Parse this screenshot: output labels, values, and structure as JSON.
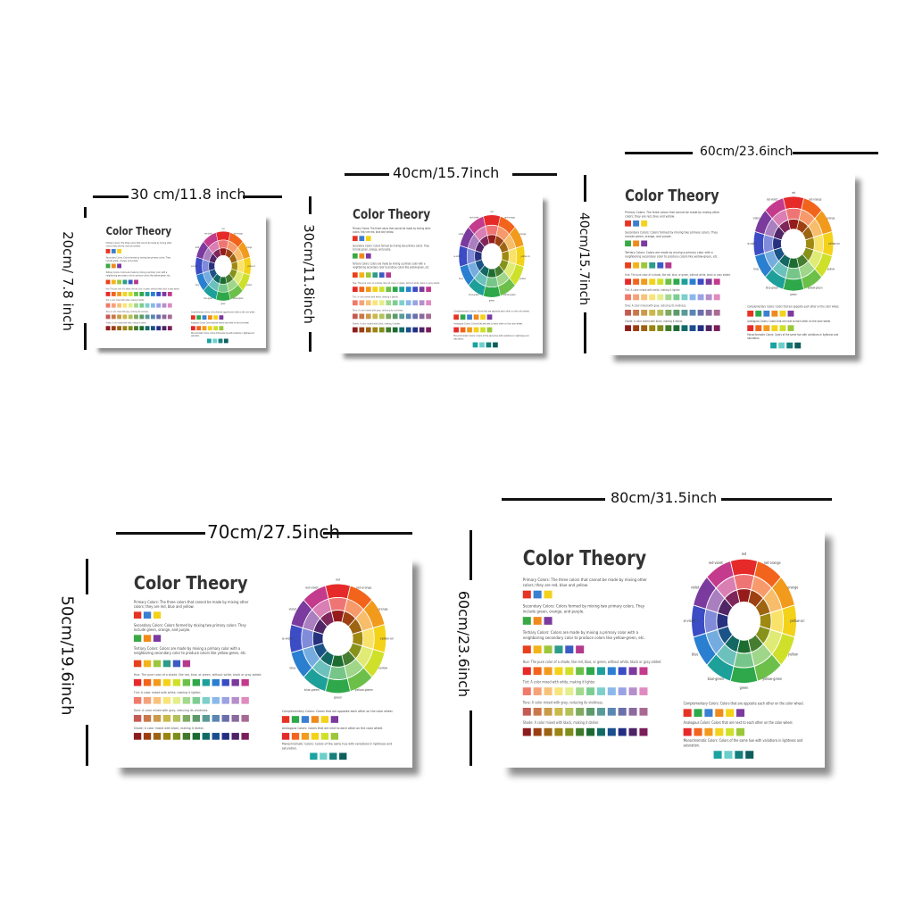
{
  "poster": {
    "title": "Color Theory",
    "primary": "Primary Colors: The three colors that cannot be made by mixing other colors; they are red, blue and yellow.",
    "secondary": "Secondary Colors: Colors formed by mixing two primary colors. They include green, orange, and purple.",
    "tertiary": "Tertiary Colors: Colors are made by mixing a primary color with a neighboring secondary color to produce colors like yellow-green, etc.",
    "hue": "Hue: The pure color of a shade, like red, blue, or green, without white, black or gray added.",
    "tint": "Tint: A color mixed with white, making it lighter.",
    "tone": "Tone: A color mixed with gray, reducing its vividness.",
    "shade": "Shade: A color mixed with black, making it darker.",
    "complementary": "Complementary Colors: Colors that are opposite each other on the color wheel.",
    "analogous": "Analogous Colors: Colors that are next to each other on the color wheel.",
    "monochromatic": "Monochromatic Colors: Colors of the same hue with variations in lightness and saturation."
  },
  "sizes": [
    {
      "width": "30 cm/11.8 inch",
      "height": "20cm/ 7.8 inch"
    },
    {
      "width": "40cm/15.7inch",
      "height": "30cm/11.8inch"
    },
    {
      "width": "60cm/23.6inch",
      "height": "40cm/15.7inch"
    },
    {
      "width": "70cm/27.5inch",
      "height": "50cm/19.6inch"
    },
    {
      "width": "80cm/31.5inch",
      "height": "60cm/23.6inch"
    }
  ],
  "colors": {
    "primary": [
      "#e63323",
      "#3a7fd0",
      "#f4d21a"
    ],
    "secondary": [
      "#3aa845",
      "#f08a1c",
      "#7b3a9e"
    ],
    "tertiary": [
      "#e8401c",
      "#f2b41a",
      "#9cc73a",
      "#2e9c8a",
      "#3b5cc4",
      "#b33a8c"
    ],
    "hue": [
      "#e62a2a",
      "#f2641c",
      "#f29a1c",
      "#f4d21a",
      "#cfe02a",
      "#6cc04a",
      "#2ea84a",
      "#1ea09a",
      "#2a7fd0",
      "#3b4cc4",
      "#7b3a9e",
      "#c43a8c"
    ],
    "tint": [
      "#f07a6a",
      "#f5a27a",
      "#f7c27a",
      "#f9e47a",
      "#e4ee8a",
      "#a2d98e",
      "#7ccd92",
      "#7ccfcb",
      "#8ab8ea",
      "#9aa2e4",
      "#b68ecb",
      "#e08ac0"
    ],
    "tone": [
      "#c45a52",
      "#c9784a",
      "#c99a4a",
      "#c9b84a",
      "#b4c05a",
      "#7eaa62",
      "#5c9a6a",
      "#5a9a96",
      "#5a86b2",
      "#6a6eaa",
      "#8a6a9e",
      "#a86a92"
    ],
    "shade": [
      "#8e1c1c",
      "#9a3e12",
      "#9a6212",
      "#9a8412",
      "#7e8e1a",
      "#3e7a2a",
      "#1c6a32",
      "#126a66",
      "#1a4e8e",
      "#232e82",
      "#4e2266",
      "#7a1e5a"
    ],
    "complementary": [
      "#e63323",
      "#2ea84a",
      "#3a7fd0",
      "#f08a1c",
      "#f4d21a",
      "#7b3a9e"
    ],
    "analogous": [
      "#e62a2a",
      "#f2641c",
      "#f29a1c",
      "#f4d21a",
      "#cfe02a",
      "#9cc73a"
    ],
    "monochromatic": [
      "#1aa3a0",
      "#6ccfcb",
      "#157f7c",
      "#0e5e5c"
    ]
  },
  "wheel": {
    "hues": [
      "#e62a2a",
      "#f2641c",
      "#f29a1c",
      "#f4d21a",
      "#cfe02a",
      "#6cc04a",
      "#2ea84a",
      "#1ea09a",
      "#2a7fd0",
      "#3b4cc4",
      "#7b3a9e",
      "#c43a8c"
    ],
    "labels": [
      "red",
      "red-orange",
      "orange",
      "yellow-orange",
      "yellow",
      "yellow-green",
      "green",
      "blue-green",
      "blue",
      "blue-violet",
      "violet",
      "red-violet"
    ]
  }
}
